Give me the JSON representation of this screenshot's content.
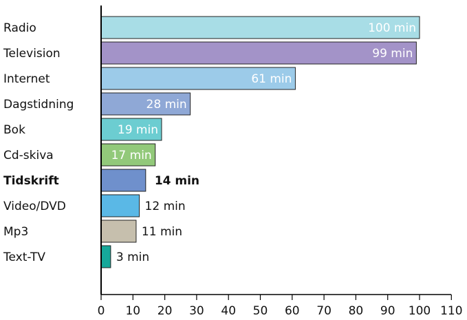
{
  "chart_data": {
    "type": "bar",
    "orientation": "horizontal",
    "title": "",
    "xlabel": "",
    "ylabel": "",
    "xlim": [
      0,
      110
    ],
    "x_ticks": [
      "0",
      "10",
      "20",
      "30",
      "40",
      "50",
      "60",
      "70",
      "80",
      "90",
      "100",
      "110"
    ],
    "grid": false,
    "legend": "none",
    "categories": [
      "Radio",
      "Television",
      "Internet",
      "Dagstidning",
      "Bok",
      "Cd-skiva",
      "Tidskrift",
      "Video/DVD",
      "Mp3",
      "Text-TV"
    ],
    "values": [
      100,
      99,
      61,
      28,
      19,
      17,
      14,
      12,
      11,
      3
    ],
    "labels": [
      "100 min",
      "99 min",
      "61 min",
      "28 min",
      "19 min",
      "17 min",
      "14 min",
      "12 min",
      "11 min",
      "3 min"
    ],
    "label_inside": [
      true,
      true,
      true,
      true,
      true,
      true,
      false,
      false,
      false,
      false
    ],
    "highlighted": [
      false,
      false,
      false,
      false,
      false,
      false,
      true,
      false,
      false,
      false
    ],
    "colors": [
      "#a8dde6",
      "#a393c8",
      "#9ccbe9",
      "#8fa8d6",
      "#6ccdd1",
      "#92c97a",
      "#6f90cc",
      "#5ab8e6",
      "#c6bfad",
      "#16a89a"
    ]
  }
}
